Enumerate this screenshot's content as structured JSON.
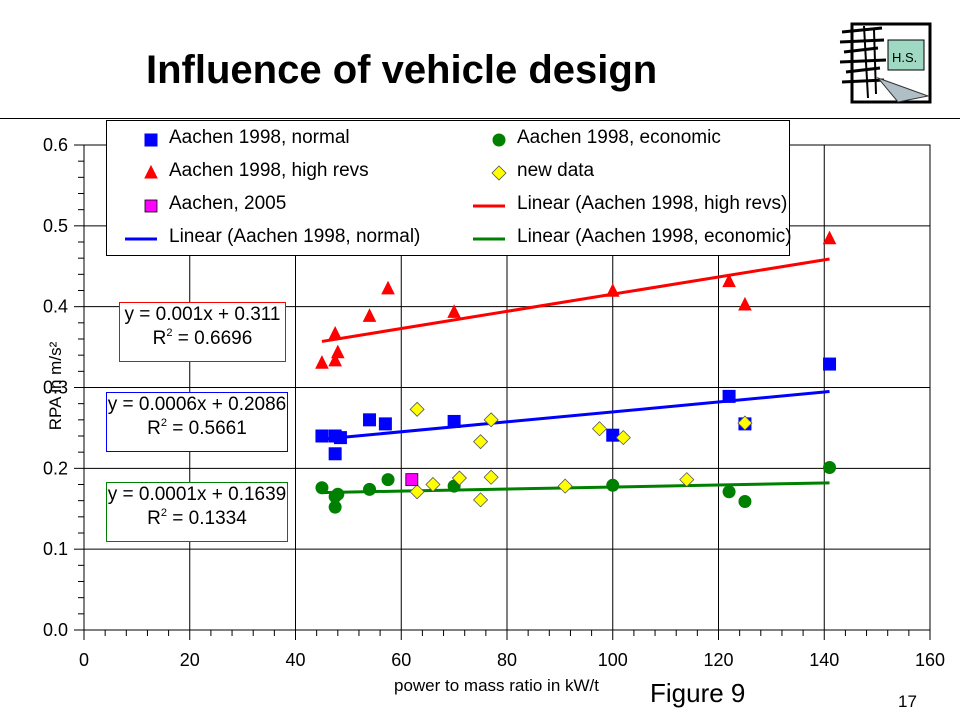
{
  "slide": {
    "title": "Influence of vehicle design",
    "figure_label": "Figure 9",
    "page_number": "17",
    "logo_text": "H.S."
  },
  "equations": {
    "red": {
      "line1": "y = 0.001x + 0.311",
      "r2_prefix": "R",
      "r2_sup": "2",
      "r2_value": " = 0.6696"
    },
    "blue": {
      "line1": "y = 0.0006x + 0.2086",
      "r2_prefix": "R",
      "r2_sup": "2",
      "r2_value": " = 0.5661"
    },
    "green": {
      "line1": "y = 0.0001x + 0.1639",
      "r2_prefix": "R",
      "r2_sup": "2",
      "r2_value": " = 0.1334"
    }
  },
  "chart_data": {
    "type": "scatter",
    "xlabel": "power to mass ratio in kW/t",
    "ylabel": "RPA in m/s²",
    "xlim": [
      0,
      160
    ],
    "ylim": [
      0,
      0.6
    ],
    "x_ticks": [
      "0",
      "20",
      "40",
      "60",
      "80",
      "100",
      "120",
      "140",
      "160"
    ],
    "y_ticks": [
      "0.0",
      "0.1",
      "0.2",
      "0.3",
      "0.4",
      "0.5",
      "0.6"
    ],
    "grid": true,
    "legend_position": "top",
    "series": [
      {
        "name": "Aachen 1998, normal",
        "marker": "square",
        "color": "#0000ff",
        "points": [
          [
            45,
            0.24
          ],
          [
            47.5,
            0.24
          ],
          [
            48.5,
            0.238
          ],
          [
            47.5,
            0.218
          ],
          [
            54,
            0.26
          ],
          [
            57,
            0.255
          ],
          [
            70,
            0.258
          ],
          [
            100,
            0.241
          ],
          [
            122,
            0.289
          ],
          [
            125,
            0.255
          ],
          [
            141,
            0.329
          ]
        ]
      },
      {
        "name": "Aachen 1998, economic",
        "marker": "circle",
        "color": "#008000",
        "points": [
          [
            45,
            0.176
          ],
          [
            47.5,
            0.165
          ],
          [
            48,
            0.168
          ],
          [
            47.5,
            0.152
          ],
          [
            54,
            0.174
          ],
          [
            57.5,
            0.186
          ],
          [
            70,
            0.178
          ],
          [
            100,
            0.179
          ],
          [
            122,
            0.171
          ],
          [
            125,
            0.159
          ],
          [
            141,
            0.201
          ]
        ]
      },
      {
        "name": "Aachen 1998, high revs",
        "marker": "triangle",
        "color": "#ff0000",
        "points": [
          [
            45,
            0.33
          ],
          [
            47.5,
            0.333
          ],
          [
            48,
            0.343
          ],
          [
            47.5,
            0.366
          ],
          [
            54,
            0.388
          ],
          [
            57.5,
            0.422
          ],
          [
            70,
            0.393
          ],
          [
            100,
            0.419
          ],
          [
            122,
            0.431
          ],
          [
            125,
            0.402
          ],
          [
            141,
            0.484
          ]
        ]
      },
      {
        "name": "new data",
        "marker": "diamond",
        "color": "#ffff00",
        "points": [
          [
            63,
            0.273
          ],
          [
            63,
            0.171
          ],
          [
            66,
            0.18
          ],
          [
            71,
            0.188
          ],
          [
            75,
            0.233
          ],
          [
            75,
            0.161
          ],
          [
            77,
            0.26
          ],
          [
            77,
            0.189
          ],
          [
            91,
            0.178
          ],
          [
            97.5,
            0.249
          ],
          [
            102,
            0.238
          ],
          [
            114,
            0.186
          ],
          [
            125,
            0.256
          ]
        ]
      },
      {
        "name": "Aachen, 2005",
        "marker": "square",
        "color": "#ff00ff",
        "points": [
          [
            62,
            0.186
          ]
        ]
      }
    ],
    "trendlines": [
      {
        "name": "Linear (Aachen 1998, high revs)",
        "color": "#ff0000",
        "x": [
          45,
          141
        ],
        "y": [
          0.357,
          0.459
        ]
      },
      {
        "name": "Linear (Aachen 1998, normal)",
        "color": "#0000ff",
        "x": [
          45,
          141
        ],
        "y": [
          0.236,
          0.295
        ]
      },
      {
        "name": "Linear (Aachen 1998, economic)",
        "color": "#008000",
        "x": [
          45,
          141
        ],
        "y": [
          0.17,
          0.182
        ]
      }
    ],
    "legend_items": [
      {
        "label": "Aachen 1998, normal",
        "kind": "square",
        "color": "#0000ff"
      },
      {
        "label": "Aachen 1998, economic",
        "kind": "circle",
        "color": "#008000"
      },
      {
        "label": "Aachen 1998, high revs",
        "kind": "triangle",
        "color": "#ff0000"
      },
      {
        "label": "new data",
        "kind": "diamond",
        "color": "#ffff00"
      },
      {
        "label": "Aachen, 2005",
        "kind": "square",
        "color": "#ff00ff"
      },
      {
        "label": "Linear (Aachen 1998, high revs)",
        "kind": "line",
        "color": "#ff0000"
      },
      {
        "label": "Linear (Aachen 1998, normal)",
        "kind": "line",
        "color": "#0000ff"
      },
      {
        "label": "Linear (Aachen 1998, economic)",
        "kind": "line",
        "color": "#008000"
      }
    ]
  }
}
